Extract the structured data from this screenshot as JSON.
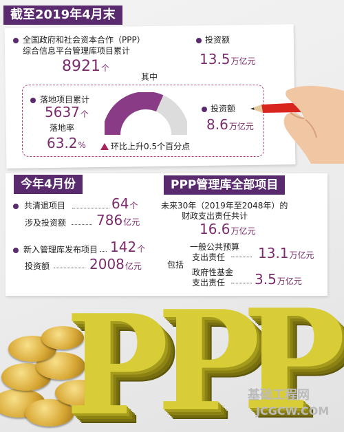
{
  "header": {
    "title": "截至2019年4月末"
  },
  "cumulative": {
    "label_line1": "全国政府和社会资本合作（PPP）",
    "label_line2": "综合信息平台管理库项目累计",
    "count_value": "8921",
    "count_unit": "个",
    "invest_label": "投资额",
    "invest_value": "13.5",
    "invest_unit": "万亿元"
  },
  "landed": {
    "among": "其中",
    "label": "落地项目累计",
    "count_value": "5637",
    "count_unit": "个",
    "rate_label": "落地率",
    "rate_value": "63.2",
    "rate_unit": "%",
    "rate_fraction": 0.632,
    "growth_note": "环比上升0.5个百分点",
    "invest_label": "投资额",
    "invest_value": "8.6",
    "invest_unit": "万亿元"
  },
  "april": {
    "title": "今年4月份",
    "exit_label": "共清退项目",
    "exit_value": "64",
    "exit_unit": "个",
    "exit_invest_label": "涉及投资额",
    "exit_invest_value": "786",
    "exit_invest_unit": "亿元",
    "new_label": "新入管理库发布项目",
    "new_value": "142",
    "new_unit": "个",
    "new_invest_label": "投资额",
    "new_invest_value": "2008",
    "new_invest_unit": "亿元"
  },
  "library": {
    "title": "PPP管理库全部项目",
    "desc_line1": "未来30年（2019年至2048年）的",
    "desc_line2": "财政支出责任共计",
    "total_value": "16.6",
    "total_unit": "万亿元",
    "include_label": "包括",
    "item1_line1": "一般公共预算",
    "item1_line2": "支出责任",
    "item1_value": "13.1",
    "item1_unit": "万亿元",
    "item2_line1": "政府性基金",
    "item2_line2": "支出责任",
    "item2_value": "3.5",
    "item2_unit": "万亿元"
  },
  "art": {
    "letters": [
      "P",
      "P",
      "P"
    ]
  },
  "watermark": {
    "cn": "基础工程网",
    "en": "JCGCW.COM"
  },
  "colors": {
    "accent": "#5a2a6e",
    "number": "#7c2b6d",
    "gauge_track": "#dcdcdc",
    "pencil": "#d8261f"
  }
}
